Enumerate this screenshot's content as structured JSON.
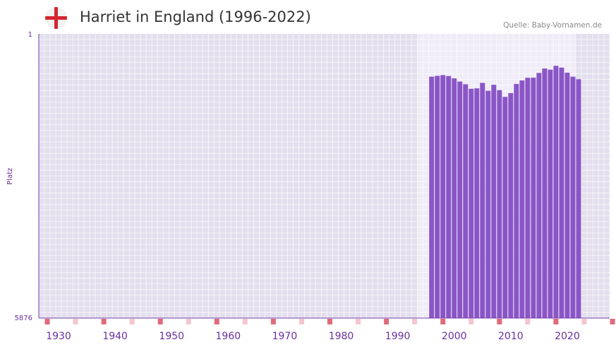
{
  "header": {
    "title": "Harriet in England (1996-2022)",
    "source": "Quelle: Baby-Vornamen.de",
    "flag_icon": "england-flag-icon"
  },
  "colors": {
    "bar": "#8a55c6",
    "plot_bg": "#e3dfee",
    "highlight_bg": "#efecf8",
    "axis": "#7a3fa8",
    "decade_marker": "#e06b7a",
    "half_decade_marker": "#f5c6cf"
  },
  "chart_data": {
    "type": "bar",
    "title": "Harriet in England (1996-2022)",
    "xlabel": "",
    "ylabel": "Platz",
    "y_inverted": true,
    "ylim": [
      1,
      5876
    ],
    "y_ticks": [
      "1",
      "5876"
    ],
    "xlim": [
      1927,
      2028
    ],
    "x_ticks": [
      "1930",
      "1940",
      "1950",
      "1960",
      "1970",
      "1980",
      "1990",
      "2000",
      "2010",
      "2020"
    ],
    "highlight_range": [
      1994,
      2021
    ],
    "categories": [
      "1996",
      "1997",
      "1998",
      "1999",
      "2000",
      "2001",
      "2002",
      "2003",
      "2004",
      "2005",
      "2006",
      "2007",
      "2008",
      "2009",
      "2010",
      "2011",
      "2012",
      "2013",
      "2014",
      "2015",
      "2016",
      "2017",
      "2018",
      "2019",
      "2020",
      "2021",
      "2022"
    ],
    "values": [
      886,
      868,
      853,
      873,
      921,
      987,
      1043,
      1136,
      1127,
      1014,
      1177,
      1054,
      1165,
      1303,
      1226,
      1037,
      964,
      908,
      906,
      809,
      717,
      741,
      661,
      699,
      804,
      885,
      939
    ]
  }
}
